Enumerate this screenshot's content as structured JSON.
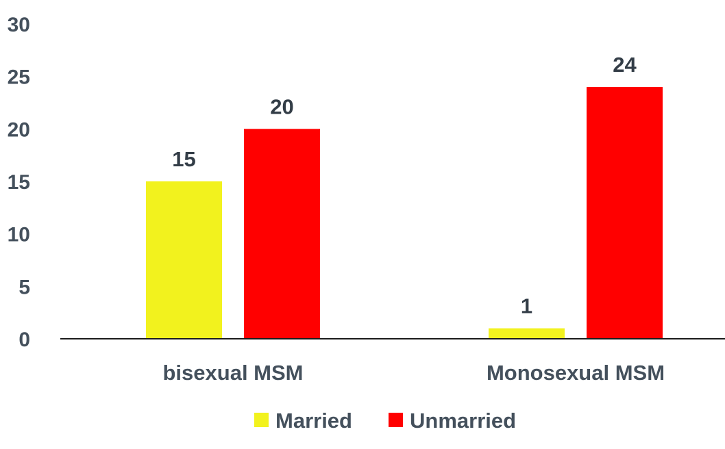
{
  "chart_data": {
    "type": "bar",
    "categories": [
      "bisexual MSM",
      "Monosexual MSM"
    ],
    "series": [
      {
        "name": "Married",
        "values": [
          15,
          1
        ],
        "color": "#f2f21e"
      },
      {
        "name": "Unmarried",
        "values": [
          20,
          24
        ],
        "color": "#ff0000"
      }
    ],
    "ylim": [
      0,
      30
    ],
    "yticks": [
      0,
      5,
      10,
      15,
      20,
      25,
      30
    ],
    "grid": false,
    "data_labels": true,
    "legend_position": "bottom"
  }
}
